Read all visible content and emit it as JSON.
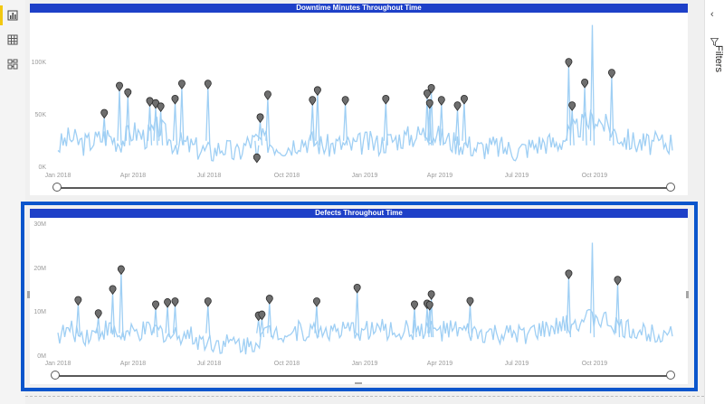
{
  "nav": {
    "items": [
      {
        "name": "report-view-icon"
      },
      {
        "name": "data-view-icon"
      },
      {
        "name": "model-view-icon"
      }
    ]
  },
  "filters_pane": {
    "label": "Filters"
  },
  "colors": {
    "accent": "#1e40c8",
    "line": "#9fcff4",
    "marker": "#6e6e6e",
    "selection": "#0a55cc"
  },
  "chart_data": [
    {
      "type": "line",
      "title": "Downtime Minutes Throughout Time",
      "y_ticks": [
        "100K",
        "50K",
        "0K"
      ],
      "ylim": [
        0,
        140000
      ],
      "x_ticks": [
        "Jan 2018",
        "Apr 2018",
        "Jul 2018",
        "Oct 2018",
        "Jan 2019",
        "Apr 2019",
        "Jul 2019",
        "Oct 2019"
      ],
      "x_range": [
        "2018-01-01",
        "2019-12-31"
      ],
      "series": [
        {
          "points": [
            [
              "2018-01-01",
              20000
            ],
            [
              "2018-01-15",
              28000
            ],
            [
              "2018-02-01",
              22000
            ],
            [
              "2018-02-15",
              26000
            ],
            [
              "2018-03-01",
              30000
            ],
            [
              "2018-03-15",
              24000
            ],
            [
              "2018-04-01",
              34000
            ],
            [
              "2018-04-15",
              28000
            ],
            [
              "2018-05-01",
              38000
            ],
            [
              "2018-05-15",
              24000
            ],
            [
              "2018-06-01",
              22000
            ],
            [
              "2018-06-15",
              18000
            ],
            [
              "2018-07-01",
              14000
            ],
            [
              "2018-07-15",
              20000
            ],
            [
              "2018-08-01",
              12000
            ],
            [
              "2018-08-15",
              24000
            ],
            [
              "2018-09-01",
              26000
            ],
            [
              "2018-09-15",
              22000
            ],
            [
              "2018-10-01",
              20000
            ],
            [
              "2018-10-15",
              26000
            ],
            [
              "2018-11-01",
              24000
            ],
            [
              "2018-11-15",
              20000
            ],
            [
              "2018-12-01",
              22000
            ],
            [
              "2018-12-15",
              20000
            ],
            [
              "2019-01-01",
              24000
            ],
            [
              "2019-01-15",
              22000
            ],
            [
              "2019-02-01",
              26000
            ],
            [
              "2019-02-15",
              28000
            ],
            [
              "2019-03-01",
              30000
            ],
            [
              "2019-03-15",
              34000
            ],
            [
              "2019-04-01",
              28000
            ],
            [
              "2019-04-15",
              24000
            ],
            [
              "2019-05-01",
              22000
            ],
            [
              "2019-05-15",
              18000
            ],
            [
              "2019-06-01",
              20000
            ],
            [
              "2019-06-15",
              18000
            ],
            [
              "2019-07-01",
              16000
            ],
            [
              "2019-07-15",
              20000
            ],
            [
              "2019-08-01",
              24000
            ],
            [
              "2019-08-15",
              22000
            ],
            [
              "2019-09-01",
              32000
            ],
            [
              "2019-09-15",
              40000
            ],
            [
              "2019-10-01",
              46000
            ],
            [
              "2019-10-15",
              38000
            ],
            [
              "2019-11-01",
              28000
            ],
            [
              "2019-11-15",
              24000
            ],
            [
              "2019-12-01",
              22000
            ],
            [
              "2019-12-31",
              24000
            ]
          ]
        }
      ],
      "peaks": [
        [
          "2018-02-25",
          47000
        ],
        [
          "2018-03-15",
          72000
        ],
        [
          "2018-03-25",
          66000
        ],
        [
          "2018-04-20",
          58000
        ],
        [
          "2018-04-27",
          56000
        ],
        [
          "2018-05-03",
          53000
        ],
        [
          "2018-05-20",
          60000
        ],
        [
          "2018-05-28",
          74000
        ],
        [
          "2018-06-28",
          74000
        ],
        [
          "2018-08-25",
          6000
        ],
        [
          "2018-08-29",
          43000
        ],
        [
          "2018-09-07",
          64000
        ],
        [
          "2018-10-30",
          59000
        ],
        [
          "2018-11-05",
          68000
        ],
        [
          "2018-12-08",
          59000
        ],
        [
          "2019-01-25",
          60000
        ],
        [
          "2019-03-15",
          65000
        ],
        [
          "2019-03-18",
          56000
        ],
        [
          "2019-03-20",
          70000
        ],
        [
          "2019-04-01",
          59000
        ],
        [
          "2019-04-20",
          54000
        ],
        [
          "2019-04-28",
          60000
        ],
        [
          "2019-08-30",
          94000
        ],
        [
          "2019-09-03",
          54000
        ],
        [
          "2019-09-18",
          75000
        ],
        [
          "2019-10-20",
          84000
        ]
      ],
      "max_point": [
        "2019-09-27",
        132000
      ]
    },
    {
      "type": "line",
      "title": "Defects Throughout Time",
      "y_ticks": [
        "30M",
        "20M",
        "10M",
        "0M"
      ],
      "ylim": [
        0,
        30000000
      ],
      "x_ticks": [
        "Jan 2018",
        "Apr 2018",
        "Jul 2018",
        "Oct 2018",
        "Jan 2019",
        "Apr 2019",
        "Jul 2019",
        "Oct 2019"
      ],
      "x_range": [
        "2018-01-01",
        "2019-12-31"
      ],
      "series": [
        {
          "points": [
            [
              "2018-01-01",
              5000000
            ],
            [
              "2018-01-15",
              6000000
            ],
            [
              "2018-02-01",
              5000000
            ],
            [
              "2018-02-15",
              5500000
            ],
            [
              "2018-03-01",
              6500000
            ],
            [
              "2018-03-15",
              5000000
            ],
            [
              "2018-04-01",
              5200000
            ],
            [
              "2018-04-15",
              5800000
            ],
            [
              "2018-05-01",
              6000000
            ],
            [
              "2018-05-15",
              4800000
            ],
            [
              "2018-06-01",
              5500000
            ],
            [
              "2018-06-15",
              4000000
            ],
            [
              "2018-07-01",
              3500000
            ],
            [
              "2018-07-15",
              3000000
            ],
            [
              "2018-08-01",
              3200000
            ],
            [
              "2018-08-15",
              2500000
            ],
            [
              "2018-09-01",
              5000000
            ],
            [
              "2018-09-15",
              6000000
            ],
            [
              "2018-10-01",
              5500000
            ],
            [
              "2018-10-15",
              6000000
            ],
            [
              "2018-11-01",
              5800000
            ],
            [
              "2018-11-15",
              6200000
            ],
            [
              "2018-12-01",
              5500000
            ],
            [
              "2018-12-15",
              6000000
            ],
            [
              "2019-01-01",
              6000000
            ],
            [
              "2019-01-15",
              6500000
            ],
            [
              "2019-02-01",
              5800000
            ],
            [
              "2019-02-15",
              6000000
            ],
            [
              "2019-03-01",
              6200000
            ],
            [
              "2019-03-15",
              6500000
            ],
            [
              "2019-04-01",
              5800000
            ],
            [
              "2019-04-15",
              6000000
            ],
            [
              "2019-05-01",
              5500000
            ],
            [
              "2019-05-15",
              5000000
            ],
            [
              "2019-06-01",
              5200000
            ],
            [
              "2019-06-15",
              4800000
            ],
            [
              "2019-07-01",
              5000000
            ],
            [
              "2019-07-15",
              5500000
            ],
            [
              "2019-08-01",
              6000000
            ],
            [
              "2019-08-15",
              6500000
            ],
            [
              "2019-09-01",
              7500000
            ],
            [
              "2019-09-15",
              8500000
            ],
            [
              "2019-10-01",
              9000000
            ],
            [
              "2019-10-15",
              8000000
            ],
            [
              "2019-11-01",
              6500000
            ],
            [
              "2019-11-15",
              6000000
            ],
            [
              "2019-12-01",
              5500000
            ],
            [
              "2019-12-31",
              6000000
            ]
          ]
        }
      ],
      "peaks": [
        [
          "2018-01-25",
          12000000
        ],
        [
          "2018-02-18",
          9000000
        ],
        [
          "2018-03-07",
          14500000
        ],
        [
          "2018-03-17",
          19000000
        ],
        [
          "2018-04-27",
          11000000
        ],
        [
          "2018-05-11",
          11500000
        ],
        [
          "2018-05-20",
          11700000
        ],
        [
          "2018-06-28",
          11700000
        ],
        [
          "2018-08-27",
          8500000
        ],
        [
          "2018-08-31",
          8700000
        ],
        [
          "2018-09-09",
          12300000
        ],
        [
          "2018-11-04",
          11700000
        ],
        [
          "2018-12-22",
          14800000
        ],
        [
          "2019-02-28",
          11000000
        ],
        [
          "2019-03-15",
          11200000
        ],
        [
          "2019-03-18",
          10900000
        ],
        [
          "2019-03-20",
          13300000
        ],
        [
          "2019-05-05",
          11800000
        ],
        [
          "2019-08-30",
          18000000
        ],
        [
          "2019-10-27",
          16600000
        ]
      ],
      "max_point": [
        "2019-09-27",
        26000000
      ]
    }
  ]
}
